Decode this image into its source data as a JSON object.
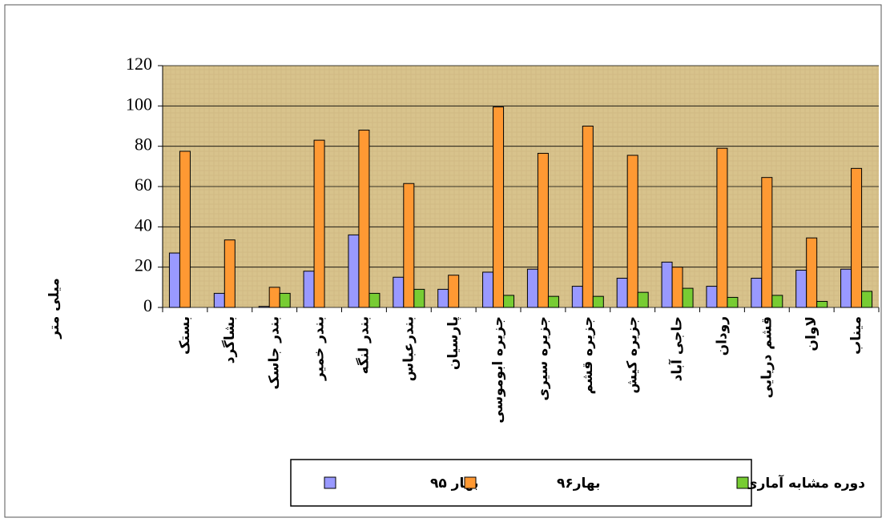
{
  "chart_data": {
    "type": "bar",
    "y_label": "میلی متر",
    "categories": [
      "بستک",
      "بشاگرد",
      "بندر جاسک",
      "بندر خمیر",
      "بندر لنگه",
      "بندرعباس",
      "پارسیان",
      "جزیره ابوموسی",
      "جزیره سیری",
      "جزیره قشم",
      "جزیره کیش",
      "حاجی آباد",
      "رودان",
      "قشم دریایی",
      "لاوان",
      "میناب"
    ],
    "series": [
      {
        "name": "بهار ۹۵",
        "color": "#9999ff",
        "values": [
          27,
          7,
          0.5,
          18,
          36,
          15,
          9,
          17.5,
          19,
          10.5,
          14.5,
          22.5,
          10.5,
          14.5,
          18.5,
          19
        ]
      },
      {
        "name": "بهار۹۶",
        "color": "#ff9933",
        "values": [
          77.5,
          33.5,
          10,
          83,
          88,
          61.5,
          16,
          99.5,
          76.5,
          90,
          75.5,
          20,
          79,
          64.5,
          34.5,
          69
        ]
      },
      {
        "name": "دوره مشابه آماری",
        "color": "#77cc33",
        "values": [
          null,
          null,
          7,
          null,
          7,
          9,
          null,
          6,
          5.5,
          5.5,
          7.5,
          9.5,
          5,
          6,
          3,
          8
        ]
      }
    ],
    "ylim": [
      0,
      120
    ],
    "yticks": [
      0,
      20,
      40,
      60,
      80,
      100,
      120
    ],
    "grid": true
  }
}
